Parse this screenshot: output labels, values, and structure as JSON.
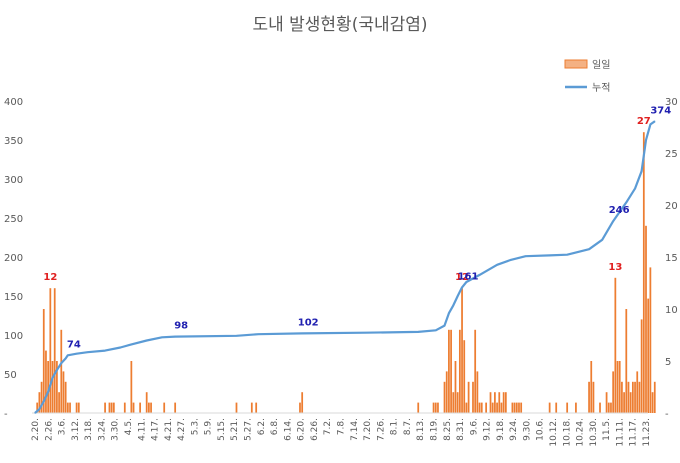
{
  "chart_data": {
    "type": "bar+line",
    "title": "도내 발생현황(국내감염)",
    "legend_position": "top-right",
    "grid": false,
    "left_axis": {
      "min": 0,
      "max": 400,
      "ticks": [
        "400",
        "350",
        "300",
        "250",
        "200",
        "150",
        "100",
        "50",
        "-"
      ]
    },
    "right_axis": {
      "min": 0,
      "max": 30,
      "ticks": [
        "30",
        "25",
        "20",
        "15",
        "10",
        "5",
        "-"
      ]
    },
    "x_start": "2020-02-20",
    "x_end": "2020-11-25",
    "x_tick_labels": [
      "2.20.",
      "2.26.",
      "3.6.",
      "3.12.",
      "3.18.",
      "3.24.",
      "3.30.",
      "4.5.",
      "4.11.",
      "4.17.",
      "4.21.",
      "4.27.",
      "5.3.",
      "5.9.",
      "5.15.",
      "5.21.",
      "5.27.",
      "6.2.",
      "6.8.",
      "6.14.",
      "6.20.",
      "6.26.",
      "7.2.",
      "7.8.",
      "7.14.",
      "7.20.",
      "7.26.",
      "8.1.",
      "8.7.",
      "8.13.",
      "8.19.",
      "8.25.",
      "8.31.",
      "9.6.",
      "9.12.",
      "9.18.",
      "9.24.",
      "9.30.",
      "10.6.",
      "10.12.",
      "10.18.",
      "10.24.",
      "10.30.",
      "11.5.",
      "11.11.",
      "11.17.",
      "11.23."
    ],
    "series": [
      {
        "name": "일일",
        "type": "bar",
        "axis": "right",
        "color": "#ED7D31",
        "points": [
          [
            "2020-02-21",
            1
          ],
          [
            "2020-02-22",
            2
          ],
          [
            "2020-02-23",
            3
          ],
          [
            "2020-02-24",
            10
          ],
          [
            "2020-02-25",
            6
          ],
          [
            "2020-02-26",
            5
          ],
          [
            "2020-02-27",
            12
          ],
          [
            "2020-02-28",
            5
          ],
          [
            "2020-02-29",
            12
          ],
          [
            "2020-03-01",
            5
          ],
          [
            "2020-03-02",
            2
          ],
          [
            "2020-03-03",
            8
          ],
          [
            "2020-03-04",
            4
          ],
          [
            "2020-03-05",
            3
          ],
          [
            "2020-03-06",
            1
          ],
          [
            "2020-03-07",
            1
          ],
          [
            "2020-03-10",
            1
          ],
          [
            "2020-03-11",
            1
          ],
          [
            "2020-03-23",
            1
          ],
          [
            "2020-03-25",
            1
          ],
          [
            "2020-03-26",
            1
          ],
          [
            "2020-03-27",
            1
          ],
          [
            "2020-04-01",
            1
          ],
          [
            "2020-04-04",
            5
          ],
          [
            "2020-04-05",
            1
          ],
          [
            "2020-04-08",
            1
          ],
          [
            "2020-04-11",
            2
          ],
          [
            "2020-04-12",
            1
          ],
          [
            "2020-04-13",
            1
          ],
          [
            "2020-04-19",
            1
          ],
          [
            "2020-04-24",
            1
          ],
          [
            "2020-05-22",
            1
          ],
          [
            "2020-05-29",
            1
          ],
          [
            "2020-05-31",
            1
          ],
          [
            "2020-06-20",
            1
          ],
          [
            "2020-06-21",
            2
          ],
          [
            "2020-08-13",
            1
          ],
          [
            "2020-08-20",
            1
          ],
          [
            "2020-08-21",
            1
          ],
          [
            "2020-08-22",
            1
          ],
          [
            "2020-08-25",
            3
          ],
          [
            "2020-08-26",
            4
          ],
          [
            "2020-08-27",
            8
          ],
          [
            "2020-08-28",
            8
          ],
          [
            "2020-08-29",
            2
          ],
          [
            "2020-08-30",
            5
          ],
          [
            "2020-08-31",
            2
          ],
          [
            "2020-09-01",
            8
          ],
          [
            "2020-09-02",
            12
          ],
          [
            "2020-09-03",
            7
          ],
          [
            "2020-09-04",
            1
          ],
          [
            "2020-09-05",
            3
          ],
          [
            "2020-09-07",
            3
          ],
          [
            "2020-09-08",
            8
          ],
          [
            "2020-09-09",
            4
          ],
          [
            "2020-09-10",
            1
          ],
          [
            "2020-09-11",
            1
          ],
          [
            "2020-09-13",
            1
          ],
          [
            "2020-09-15",
            2
          ],
          [
            "2020-09-16",
            1
          ],
          [
            "2020-09-17",
            2
          ],
          [
            "2020-09-18",
            1
          ],
          [
            "2020-09-19",
            2
          ],
          [
            "2020-09-20",
            1
          ],
          [
            "2020-09-21",
            2
          ],
          [
            "2020-09-22",
            2
          ],
          [
            "2020-09-25",
            1
          ],
          [
            "2020-09-26",
            1
          ],
          [
            "2020-09-27",
            1
          ],
          [
            "2020-09-28",
            1
          ],
          [
            "2020-09-29",
            1
          ],
          [
            "2020-10-12",
            1
          ],
          [
            "2020-10-15",
            1
          ],
          [
            "2020-10-20",
            1
          ],
          [
            "2020-10-24",
            1
          ],
          [
            "2020-10-30",
            3
          ],
          [
            "2020-10-31",
            5
          ],
          [
            "2020-11-01",
            3
          ],
          [
            "2020-11-04",
            1
          ],
          [
            "2020-11-07",
            2
          ],
          [
            "2020-11-08",
            1
          ],
          [
            "2020-11-09",
            1
          ],
          [
            "2020-11-10",
            4
          ],
          [
            "2020-11-11",
            13
          ],
          [
            "2020-11-12",
            5
          ],
          [
            "2020-11-13",
            5
          ],
          [
            "2020-11-14",
            3
          ],
          [
            "2020-11-15",
            2
          ],
          [
            "2020-11-16",
            10
          ],
          [
            "2020-11-17",
            3
          ],
          [
            "2020-11-18",
            2
          ],
          [
            "2020-11-19",
            3
          ],
          [
            "2020-11-20",
            3
          ],
          [
            "2020-11-21",
            4
          ],
          [
            "2020-11-22",
            3
          ],
          [
            "2020-11-23",
            9
          ],
          [
            "2020-11-24",
            27
          ],
          [
            "2020-11-25",
            18
          ],
          [
            "2020-11-26",
            11
          ],
          [
            "2020-11-27",
            14
          ],
          [
            "2020-11-28",
            2
          ],
          [
            "2020-11-29",
            3
          ]
        ]
      },
      {
        "name": "누적",
        "type": "line",
        "axis": "left",
        "color": "#5B9BD5",
        "points": [
          [
            "2020-02-20",
            0
          ],
          [
            "2020-02-22",
            5
          ],
          [
            "2020-02-24",
            15
          ],
          [
            "2020-02-26",
            27
          ],
          [
            "2020-02-28",
            45
          ],
          [
            "2020-03-01",
            55
          ],
          [
            "2020-03-03",
            64
          ],
          [
            "2020-03-05",
            70
          ],
          [
            "2020-03-06",
            74
          ],
          [
            "2020-03-10",
            76
          ],
          [
            "2020-03-15",
            78
          ],
          [
            "2020-03-23",
            80
          ],
          [
            "2020-03-30",
            84
          ],
          [
            "2020-04-04",
            88
          ],
          [
            "2020-04-11",
            93
          ],
          [
            "2020-04-18",
            97
          ],
          [
            "2020-04-24",
            98
          ],
          [
            "2020-05-22",
            99
          ],
          [
            "2020-06-01",
            101
          ],
          [
            "2020-06-21",
            102
          ],
          [
            "2020-07-20",
            103
          ],
          [
            "2020-08-13",
            104
          ],
          [
            "2020-08-21",
            106
          ],
          [
            "2020-08-25",
            112
          ],
          [
            "2020-08-27",
            128
          ],
          [
            "2020-08-29",
            138
          ],
          [
            "2020-08-31",
            150
          ],
          [
            "2020-09-02",
            161
          ],
          [
            "2020-09-04",
            168
          ],
          [
            "2020-09-10",
            177
          ],
          [
            "2020-09-18",
            190
          ],
          [
            "2020-09-24",
            196
          ],
          [
            "2020-10-01",
            201
          ],
          [
            "2020-10-12",
            202
          ],
          [
            "2020-10-20",
            203
          ],
          [
            "2020-10-30",
            210
          ],
          [
            "2020-11-05",
            222
          ],
          [
            "2020-11-10",
            246
          ],
          [
            "2020-11-16",
            270
          ],
          [
            "2020-11-20",
            288
          ],
          [
            "2020-11-23",
            310
          ],
          [
            "2020-11-25",
            350
          ],
          [
            "2020-11-27",
            370
          ],
          [
            "2020-11-29",
            374
          ]
        ]
      }
    ],
    "annotations": [
      {
        "text": "12",
        "series": "일일",
        "date": "2020-02-27",
        "color": "#E02020"
      },
      {
        "text": "74",
        "series": "누적",
        "date": "2020-03-06",
        "color": "#2020B0"
      },
      {
        "text": "98",
        "series": "누적",
        "date": "2020-04-24",
        "color": "#2020B0"
      },
      {
        "text": "102",
        "series": "누적",
        "date": "2020-06-21",
        "color": "#2020B0"
      },
      {
        "text": "12",
        "series": "일일",
        "date": "2020-09-02",
        "color": "#E02020"
      },
      {
        "text": "161",
        "series": "누적",
        "date": "2020-09-02",
        "color": "#2020B0"
      },
      {
        "text": "13",
        "series": "일일",
        "date": "2020-11-11",
        "color": "#E02020"
      },
      {
        "text": "246",
        "series": "누적",
        "date": "2020-11-10",
        "color": "#2020B0"
      },
      {
        "text": "27",
        "series": "일일",
        "date": "2020-11-24",
        "color": "#E02020"
      },
      {
        "text": "374",
        "series": "누적",
        "date": "2020-11-29",
        "color": "#2020B0"
      }
    ]
  }
}
